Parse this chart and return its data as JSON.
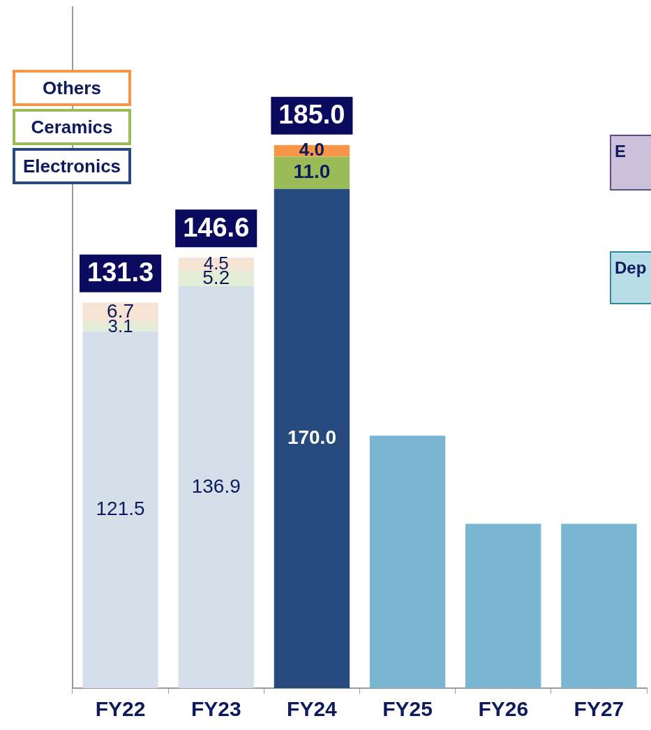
{
  "chart_data": {
    "type": "bar",
    "stacked": true,
    "categories": [
      "FY22",
      "FY23",
      "FY24",
      "FY25",
      "FY26",
      "FY27"
    ],
    "series": [
      {
        "name": "Electronics",
        "color": "#264a7e",
        "colors": [
          "#d5dfea",
          "#d5dfea",
          "#264a7e",
          null,
          null,
          null
        ],
        "values": [
          121.5,
          136.9,
          170.0,
          null,
          null,
          null
        ],
        "value_labels": [
          "121.5",
          "136.9",
          "170.0",
          null,
          null,
          null
        ]
      },
      {
        "name": "Ceramics",
        "color": "#9bbb59",
        "colors": [
          "#e3ecd6",
          "#e3ecd6",
          "#9bbb59",
          null,
          null,
          null
        ],
        "values": [
          3.1,
          5.2,
          11.0,
          null,
          null,
          null
        ],
        "value_labels": [
          "3.1",
          "5.2",
          "11.0",
          null,
          null,
          null
        ]
      },
      {
        "name": "Others",
        "color": "#f79646",
        "colors": [
          "#f5e3d3",
          "#f5e3d3",
          "#f79646",
          null,
          null,
          null
        ],
        "values": [
          6.7,
          4.5,
          4.0,
          null,
          null,
          null
        ],
        "value_labels": [
          "6.7",
          "4.5",
          "4.0",
          null,
          null,
          null
        ]
      },
      {
        "color": "#7ab6d2",
        "values": [
          null,
          null,
          null,
          86,
          56,
          56
        ]
      }
    ],
    "totals": [
      "131.3",
      "146.6",
      "185.0",
      null,
      null,
      null
    ],
    "ylim": [
      0,
      232
    ],
    "tick_labels": "x",
    "grid": false,
    "legend": "top left",
    "annotations": [
      "E",
      "Dep"
    ]
  }
}
